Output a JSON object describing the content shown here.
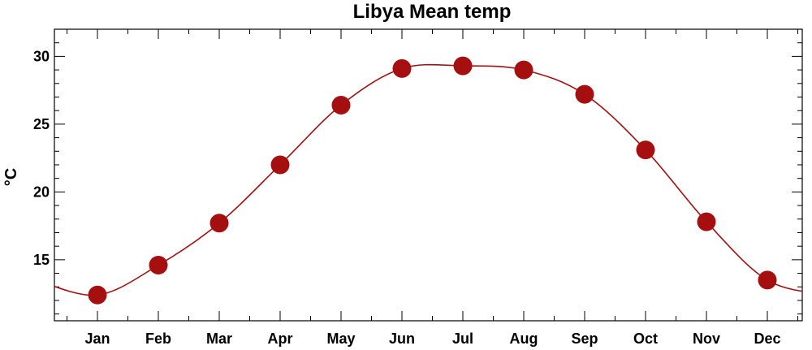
{
  "chart_data": {
    "type": "line",
    "title": "Libya Mean temp",
    "xlabel": "",
    "ylabel": "°C",
    "categories": [
      "Jan",
      "Feb",
      "Mar",
      "Apr",
      "May",
      "Jun",
      "Jul",
      "Aug",
      "Sep",
      "Oct",
      "Nov",
      "Dec"
    ],
    "series": [
      {
        "values": [
          12.4,
          14.6,
          17.7,
          22.0,
          26.4,
          29.1,
          29.3,
          29.0,
          27.2,
          23.1,
          17.8,
          13.5
        ],
        "color": "#a50f0f"
      }
    ],
    "ylim": [
      10.5,
      32
    ],
    "yticks": [
      15,
      20,
      25,
      30
    ],
    "ytick_labels": [
      "15",
      "20",
      "25",
      "30"
    ],
    "grid": false,
    "marker": "filled-circle"
  }
}
